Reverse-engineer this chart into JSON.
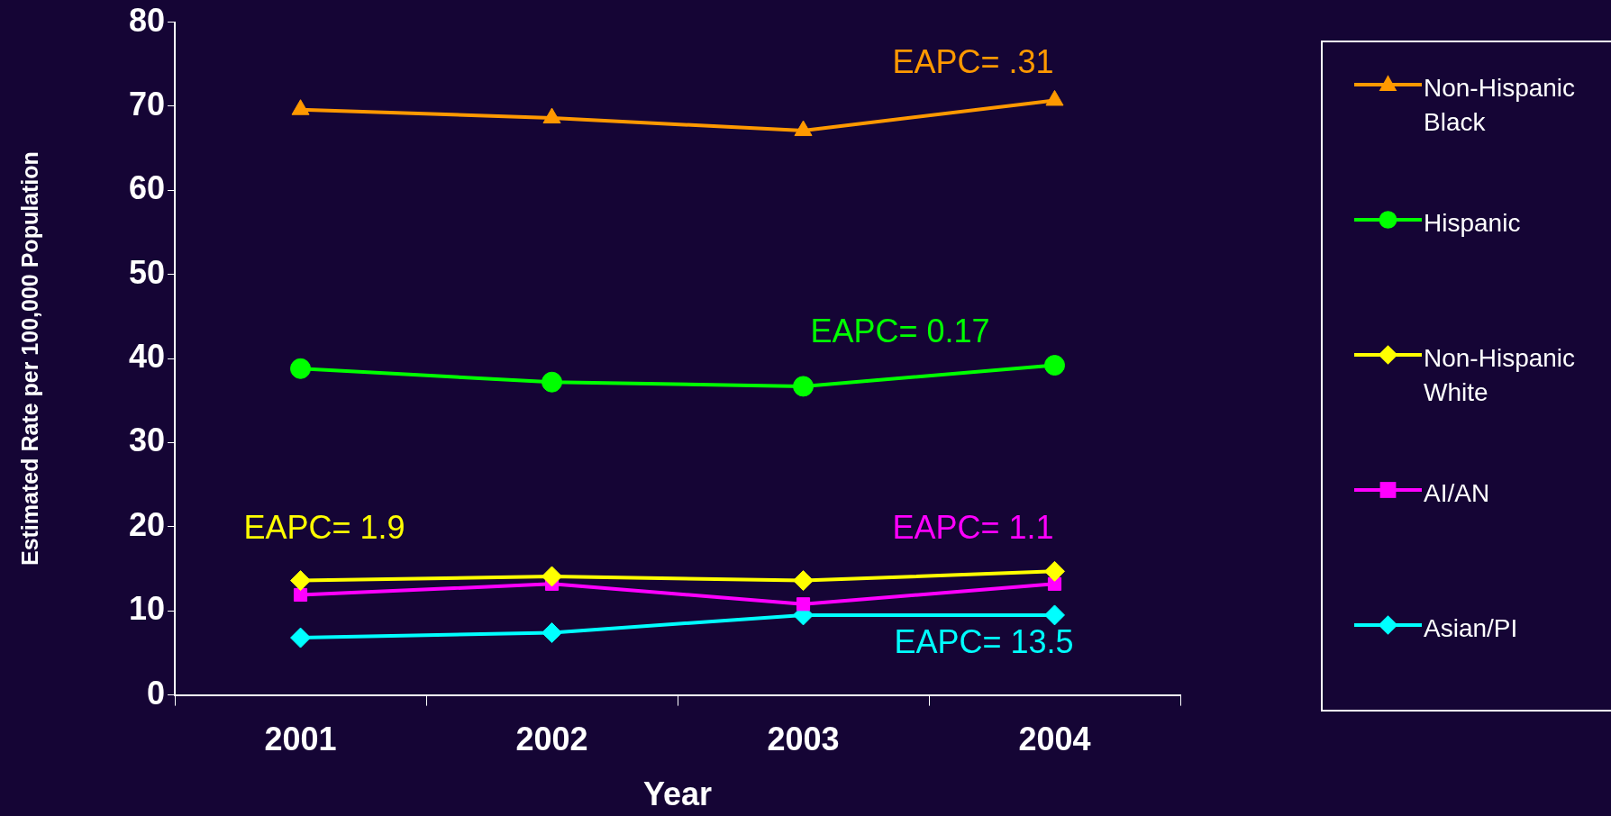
{
  "chart_data": {
    "type": "line",
    "xlabel": "Year",
    "ylabel": "Estimated Rate per 100,000 Population",
    "categories": [
      "2001",
      "2002",
      "2003",
      "2004"
    ],
    "ylim": [
      0,
      80
    ],
    "yticks": [
      0,
      10,
      20,
      30,
      40,
      50,
      60,
      70,
      80
    ],
    "grid": false,
    "legend": "right",
    "line_style": "solid",
    "series": [
      {
        "name": "Non-Hispanic Black",
        "color": "#ff9900",
        "marker": "triangle",
        "values": [
          69.6,
          68.6,
          67.1,
          70.7
        ]
      },
      {
        "name": "Hispanic",
        "color": "#00ff00",
        "marker": "circle",
        "values": [
          38.8,
          37.2,
          36.7,
          39.2
        ]
      },
      {
        "name": "Non-Hispanic White",
        "color": "#ffff00",
        "marker": "diamond",
        "values": [
          13.6,
          14.1,
          13.6,
          14.7
        ]
      },
      {
        "name": "AI/AN",
        "color": "#ff00ff",
        "marker": "square",
        "values": [
          11.9,
          13.2,
          10.8,
          13.2
        ]
      },
      {
        "name": "Asian/PI",
        "color": "#00ffff",
        "marker": "diamond",
        "values": [
          6.8,
          7.4,
          9.5,
          9.5
        ]
      }
    ],
    "annotations": [
      "EAPC= .31",
      "EAPC= 0.17",
      "EAPC= 1.9",
      "EAPC= 1.1",
      "EAPC= 13.5"
    ]
  }
}
